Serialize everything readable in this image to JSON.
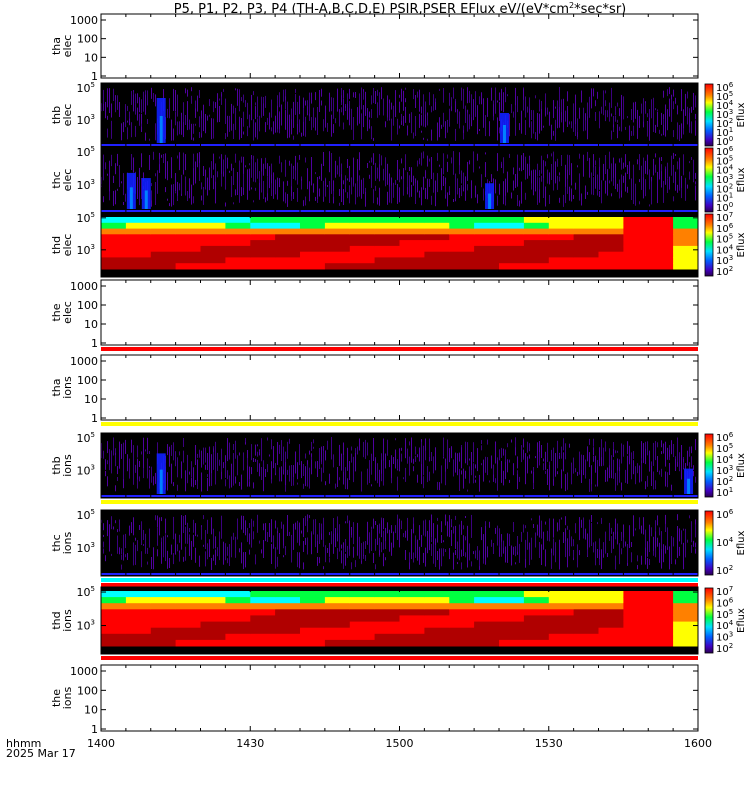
{
  "chart_data": {
    "type": "heatmap",
    "title_parts": [
      "P5, P1, P2, P3, P4 (TH-A,B,C,D,E) PSIR,PSER EFlux eV/(eV*cm",
      "2",
      "*sec*sr)"
    ],
    "xaxis": {
      "label": "hhmm",
      "date_label": "2025 Mar 17",
      "range_minutes": [
        840,
        960
      ],
      "ticks": [
        {
          "label": "1400",
          "minute": 840
        },
        {
          "label": "1430",
          "minute": 870
        },
        {
          "label": "1500",
          "minute": 900
        },
        {
          "label": "1530",
          "minute": 930
        },
        {
          "label": "1600",
          "minute": 960
        }
      ]
    },
    "panels": [
      {
        "name": "tha-elec",
        "label": [
          "tha",
          "elec"
        ],
        "kind": "empty",
        "yticks": [
          "1000",
          "100",
          "10",
          "1"
        ]
      },
      {
        "name": "thb-elec",
        "label": [
          "thb",
          "elec"
        ],
        "kind": "sparse",
        "seed": 11,
        "ylim": [
          20,
          200000
        ],
        "hotspots": [
          [
            852,
            0.2,
            45
          ],
          [
            921,
            0.2,
            30
          ]
        ],
        "yticks": [
          {
            "base": "10",
            "exp": "5",
            "value": 100000
          },
          {
            "base": "10",
            "exp": "3",
            "value": 1000
          }
        ],
        "colorbar": {
          "label": "Eflux",
          "ticks": [
            {
              "base": "10",
              "exp": "6"
            },
            {
              "base": "10",
              "exp": "5"
            },
            {
              "base": "10",
              "exp": "4"
            },
            {
              "base": "10",
              "exp": "3"
            },
            {
              "base": "10",
              "exp": "2"
            },
            {
              "base": "10",
              "exp": "1"
            },
            {
              "base": "10",
              "exp": "0"
            }
          ]
        }
      },
      {
        "name": "thc-elec",
        "label": [
          "thc",
          "elec"
        ],
        "kind": "sparse",
        "seed": 23,
        "ylim": [
          20,
          200000
        ],
        "hotspots": [
          [
            846,
            0.25,
            35
          ],
          [
            849,
            0.25,
            30
          ],
          [
            918,
            0.25,
            25
          ]
        ],
        "yticks": [
          {
            "base": "10",
            "exp": "5",
            "value": 100000
          },
          {
            "base": "10",
            "exp": "3",
            "value": 1000
          }
        ],
        "colorbar": {
          "label": "Eflux",
          "ticks": [
            {
              "base": "10",
              "exp": "6"
            },
            {
              "base": "10",
              "exp": "5"
            },
            {
              "base": "10",
              "exp": "4"
            },
            {
              "base": "10",
              "exp": "3"
            },
            {
              "base": "10",
              "exp": "2"
            },
            {
              "base": "10",
              "exp": "1"
            },
            {
              "base": "10",
              "exp": "0"
            }
          ]
        }
      },
      {
        "name": "thd-elec",
        "label": [
          "thd",
          "elec"
        ],
        "kind": "dense",
        "ylim": [
          20,
          200000
        ],
        "yticks": [
          {
            "base": "10",
            "exp": "5",
            "value": 100000
          },
          {
            "base": "10",
            "exp": "3",
            "value": 1000
          }
        ],
        "colorbar": {
          "label": "Eflux",
          "ticks": [
            {
              "base": "10",
              "exp": "7"
            },
            {
              "base": "10",
              "exp": "6"
            },
            {
              "base": "10",
              "exp": "5"
            },
            {
              "base": "10",
              "exp": "4"
            },
            {
              "base": "10",
              "exp": "3"
            },
            {
              "base": "10",
              "exp": "2"
            }
          ]
        }
      },
      {
        "name": "the-elec",
        "label": [
          "the",
          "elec"
        ],
        "kind": "empty",
        "bottom_band": [
          "#ff0000"
        ],
        "yticks": [
          "1000",
          "100",
          "10",
          "1"
        ]
      },
      {
        "name": "tha-ions",
        "label": [
          "tha",
          "ions"
        ],
        "kind": "empty",
        "bottom_band": [
          "#ffff00"
        ],
        "yticks": [
          "1000",
          "100",
          "10",
          "1"
        ]
      },
      {
        "name": "thb-ions",
        "label": [
          "thb",
          "ions"
        ],
        "kind": "sparse",
        "seed": 37,
        "ylim": [
          20,
          200000
        ],
        "hotspots": [
          [
            852,
            0.15,
            40
          ],
          [
            958,
            0.15,
            25
          ]
        ],
        "bottom_band": [
          "#ffff00"
        ],
        "yticks": [
          {
            "base": "10",
            "exp": "5",
            "value": 100000
          },
          {
            "base": "10",
            "exp": "3",
            "value": 1000
          }
        ],
        "colorbar": {
          "label": "Eflux",
          "ticks": [
            {
              "base": "10",
              "exp": "6"
            },
            {
              "base": "10",
              "exp": "5"
            },
            {
              "base": "10",
              "exp": "4"
            },
            {
              "base": "10",
              "exp": "3"
            },
            {
              "base": "10",
              "exp": "2"
            },
            {
              "base": "10",
              "exp": "1"
            }
          ]
        }
      },
      {
        "name": "thc-ions",
        "label": [
          "thc",
          "ions"
        ],
        "kind": "sparse",
        "seed": 53,
        "ylim": [
          20,
          200000
        ],
        "hotspots": [],
        "bottom_band": [
          "#00ffff",
          "#ff0000"
        ],
        "yticks": [
          {
            "base": "10",
            "exp": "5",
            "value": 100000
          },
          {
            "base": "10",
            "exp": "3",
            "value": 1000
          }
        ],
        "colorbar": {
          "label": "Eflux",
          "ticks": [
            {
              "base": "10",
              "exp": "6"
            },
            {
              "base": "10",
              "exp": "4"
            },
            {
              "base": "10",
              "exp": "2"
            }
          ]
        }
      },
      {
        "name": "thd-ions",
        "label": [
          "thd",
          "ions"
        ],
        "kind": "dense",
        "ylim": [
          20,
          200000
        ],
        "bottom_band": [
          "#ff0000"
        ],
        "yticks": [
          {
            "base": "10",
            "exp": "5",
            "value": 100000
          },
          {
            "base": "10",
            "exp": "3",
            "value": 1000
          }
        ],
        "colorbar": {
          "label": "Eflux",
          "ticks": [
            {
              "base": "10",
              "exp": "7"
            },
            {
              "base": "10",
              "exp": "6"
            },
            {
              "base": "10",
              "exp": "5"
            },
            {
              "base": "10",
              "exp": "4"
            },
            {
              "base": "10",
              "exp": "3"
            },
            {
              "base": "10",
              "exp": "2"
            }
          ]
        }
      },
      {
        "name": "the-ions",
        "label": [
          "the",
          "ions"
        ],
        "kind": "empty",
        "yticks": [
          "1000",
          "100",
          "10",
          "1"
        ]
      }
    ]
  }
}
